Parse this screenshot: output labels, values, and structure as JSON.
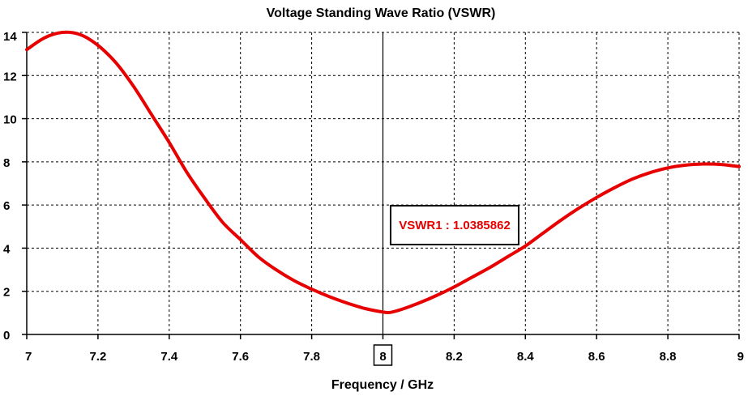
{
  "chart_data": {
    "type": "line",
    "title": "Voltage Standing Wave Ratio (VSWR)",
    "xlabel": "Frequency / GHz",
    "ylabel": "",
    "xlim": [
      7,
      9
    ],
    "ylim": [
      0,
      14
    ],
    "x_ticks": [
      "7",
      "7.2",
      "7.4",
      "7.6",
      "7.8",
      "8",
      "8.2",
      "8.4",
      "8.6",
      "8.8",
      "9"
    ],
    "y_ticks": [
      "0",
      "2",
      "4",
      "6",
      "8",
      "10",
      "12",
      "14"
    ],
    "grid": true,
    "series": [
      {
        "color": "#e60000",
        "x": [
          7.0,
          7.05,
          7.1,
          7.15,
          7.2,
          7.25,
          7.3,
          7.35,
          7.4,
          7.45,
          7.5,
          7.55,
          7.6,
          7.65,
          7.7,
          7.75,
          7.8,
          7.85,
          7.9,
          7.95,
          8.0,
          8.02,
          8.05,
          8.1,
          8.15,
          8.2,
          8.25,
          8.3,
          8.35,
          8.4,
          8.45,
          8.5,
          8.55,
          8.6,
          8.65,
          8.7,
          8.75,
          8.8,
          8.85,
          8.9,
          8.95,
          9.0
        ],
        "y": [
          13.2,
          13.75,
          14.0,
          13.9,
          13.4,
          12.6,
          11.5,
          10.2,
          8.9,
          7.5,
          6.3,
          5.2,
          4.4,
          3.6,
          3.0,
          2.5,
          2.1,
          1.75,
          1.45,
          1.2,
          1.04,
          1.02,
          1.15,
          1.45,
          1.8,
          2.2,
          2.65,
          3.1,
          3.6,
          4.1,
          4.7,
          5.3,
          5.85,
          6.35,
          6.8,
          7.2,
          7.5,
          7.72,
          7.85,
          7.9,
          7.88,
          7.78
        ]
      }
    ],
    "marker": {
      "x": 8,
      "x_label": "8",
      "label": "VSWR1 : 1.0385862"
    }
  }
}
